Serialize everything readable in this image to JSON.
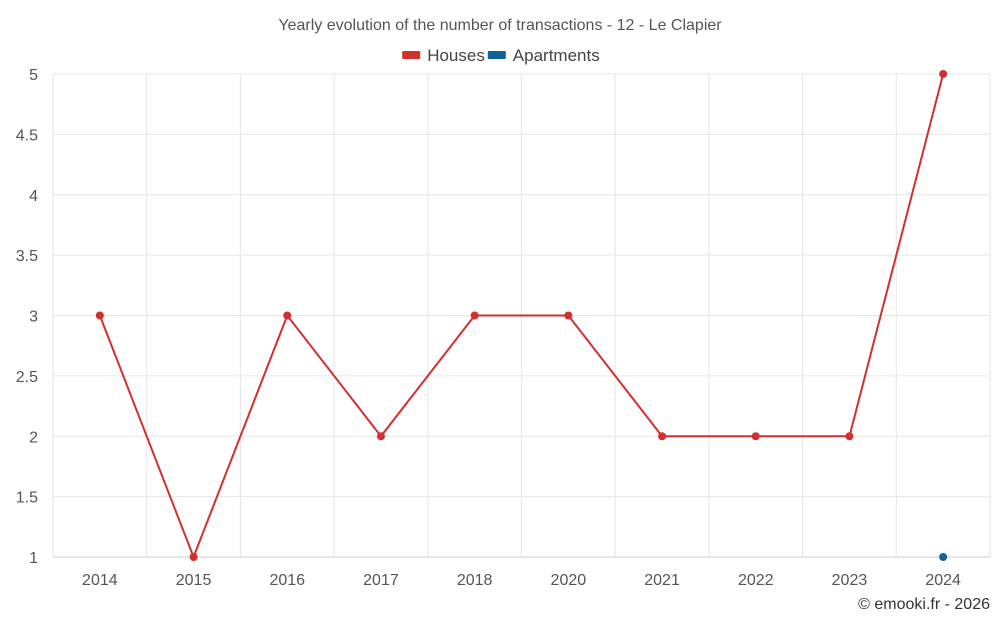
{
  "chart_data": {
    "type": "line",
    "title": "Yearly evolution of the number of transactions - 12 - Le Clapier",
    "categories": [
      "2014",
      "2015",
      "2016",
      "2017",
      "2018",
      "2020",
      "2021",
      "2022",
      "2023",
      "2024"
    ],
    "y_ticks": [
      "1",
      "1.5",
      "2",
      "2.5",
      "3",
      "3.5",
      "4",
      "4.5",
      "5"
    ],
    "ylim": [
      1,
      5
    ],
    "grid": true,
    "legend_position": "top-center",
    "series": [
      {
        "name": "Houses",
        "color": "#d32f2f",
        "values": [
          3,
          1,
          3,
          2,
          3,
          3,
          2,
          2,
          2,
          5
        ]
      },
      {
        "name": "Apartments",
        "color": "#0f6396",
        "values": [
          null,
          null,
          null,
          null,
          null,
          null,
          null,
          null,
          null,
          1
        ]
      }
    ]
  },
  "credit": "© emooki.fr - 2026"
}
